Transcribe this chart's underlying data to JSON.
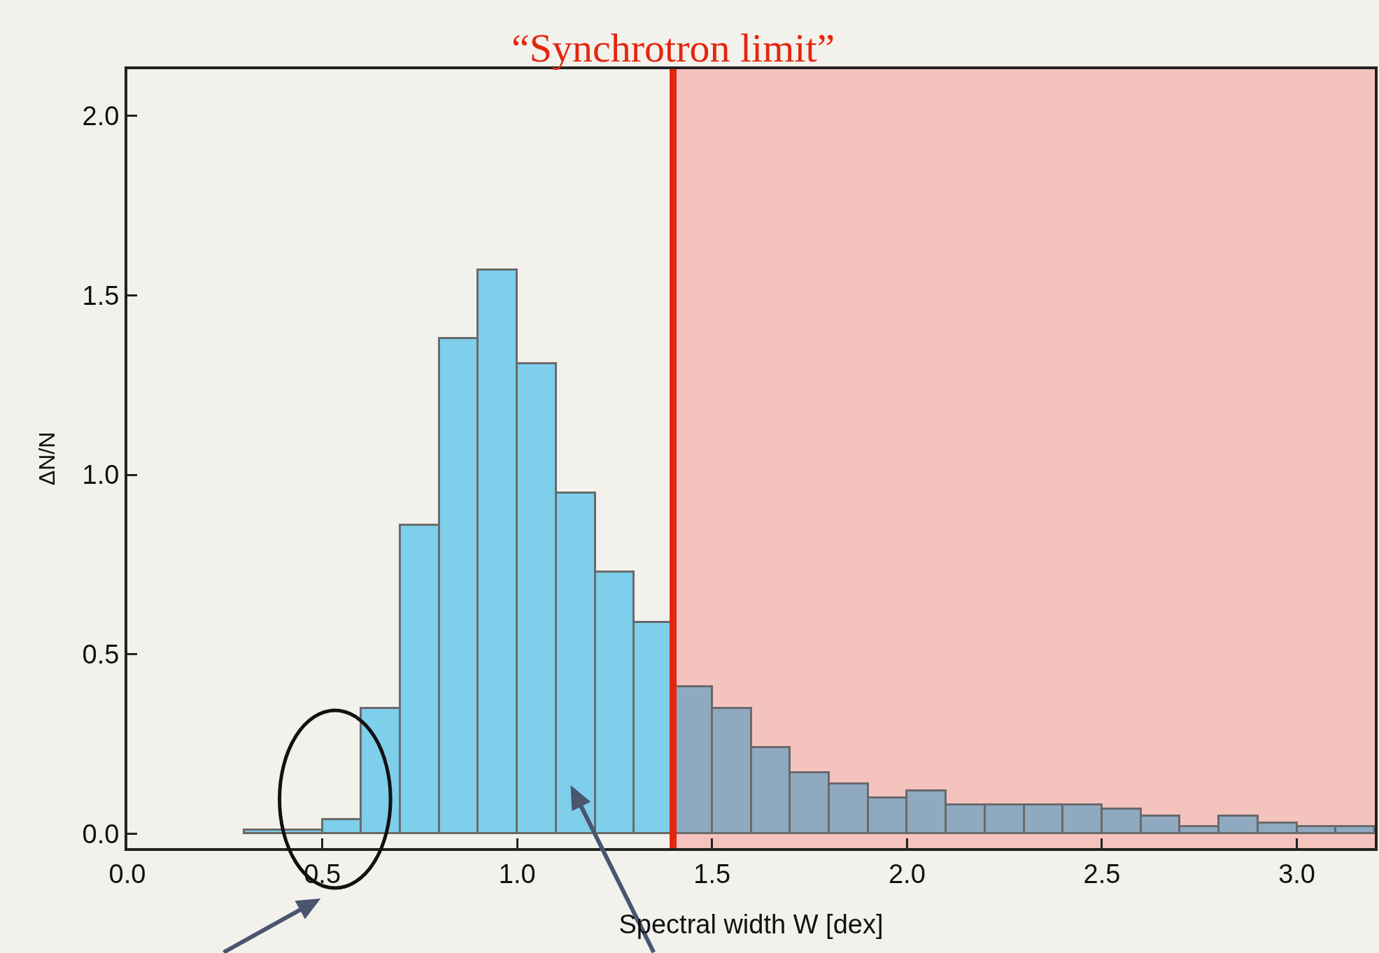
{
  "chart_data": {
    "type": "histogram",
    "xlabel": "Spectral width W [dex]",
    "ylabel": "ΔN/N",
    "bins": [
      0.3,
      0.4,
      0.5,
      0.6,
      0.7,
      0.8,
      0.9,
      1.0,
      1.1,
      1.2,
      1.3,
      1.4,
      1.5,
      1.6,
      1.7,
      1.8,
      1.9,
      2.0,
      2.1,
      2.2,
      2.3,
      2.4,
      2.5,
      2.6,
      2.7,
      2.8,
      2.9,
      3.0,
      3.1,
      3.2
    ],
    "values": [
      0.01,
      0.01,
      0.04,
      0.35,
      0.86,
      1.38,
      1.57,
      1.31,
      0.95,
      0.73,
      0.59,
      0.41,
      0.35,
      0.24,
      0.17,
      0.14,
      0.1,
      0.12,
      0.08,
      0.08,
      0.08,
      0.08,
      0.07,
      0.05,
      0.02,
      0.05,
      0.03,
      0.02,
      0.02
    ],
    "colors": [
      "#7dcfec",
      "#7dcfec",
      "#7dcfec",
      "#7dcfec",
      "#7dcfec",
      "#7dcfec",
      "#7dcfec",
      "#7dcfec",
      "#7dcfec",
      "#7dcfec",
      "#7dcfec",
      "#8fa9c0",
      "#8fa9c0",
      "#8fa9c0",
      "#8fa9c0",
      "#8fa9c0",
      "#8fa9c0",
      "#8fa9c0",
      "#8fa9c0",
      "#8fa9c0",
      "#8fa9c0",
      "#8fa9c0",
      "#8fa9c0",
      "#8fa9c0",
      "#8fa9c0",
      "#8fa9c0",
      "#8fa9c0",
      "#8fa9c0",
      "#8fa9c0"
    ],
    "xlim": [
      0,
      3.2
    ],
    "ylim": [
      -0.04,
      2.13
    ],
    "xticks": [
      {
        "value": 0,
        "label": "0.0"
      },
      0.5,
      {
        "value": 1,
        "label": "1.0"
      },
      1.5,
      {
        "value": 2,
        "label": "2.0"
      },
      2.5,
      {
        "value": 3,
        "label": "3.0"
      }
    ],
    "yticks": [
      {
        "value": 0,
        "label": "0.0"
      },
      0.5,
      {
        "value": 1,
        "label": "1.0"
      },
      1.5,
      {
        "value": 2,
        "label": "2.0"
      }
    ],
    "ref_lines": [
      {
        "axis": "x",
        "value": 1.4,
        "label": "“Synchrotron limit”",
        "color": "#e4260e"
      }
    ],
    "bands": [
      {
        "axis": "x",
        "from": 1.4,
        "to": 3.2,
        "label": null,
        "color": "#f5c3be"
      }
    ],
    "tick_labels": true
  }
}
